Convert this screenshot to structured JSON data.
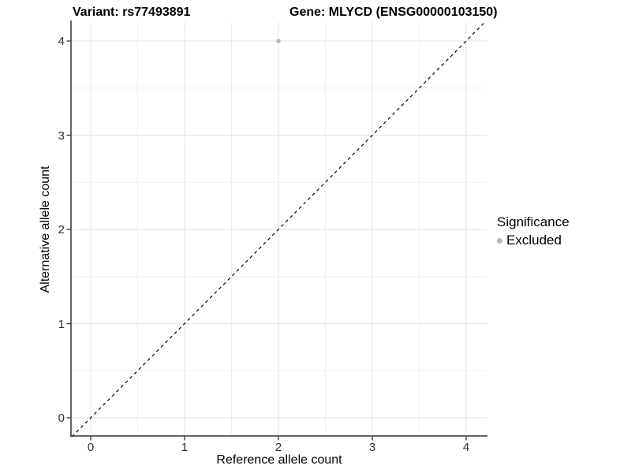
{
  "chart_data": {
    "type": "scatter",
    "title_left": "Variant: rs77493891",
    "title_right": "Gene: MLYCD (ENSG00000103150)",
    "xlabel": "Reference allele count",
    "ylabel": "Alternative allele count",
    "xlim": [
      -0.2,
      4.2
    ],
    "ylim": [
      -0.2,
      4.2
    ],
    "x_ticks": [
      0,
      1,
      2,
      3,
      4
    ],
    "y_ticks": [
      0,
      1,
      2,
      3,
      4
    ],
    "grid": "major and minor gridlines, light grey on white",
    "series": [
      {
        "name": "Excluded",
        "color": "#b5b5b5",
        "points": [
          {
            "x": 2,
            "y": 4
          }
        ]
      }
    ],
    "identity_line": {
      "style": "dashed",
      "color": "#000000",
      "from": [
        -0.2,
        -0.2
      ],
      "to": [
        4.2,
        4.2
      ]
    },
    "legend": {
      "position": "right",
      "title": "Significance",
      "items": [
        {
          "label": "Excluded",
          "color": "#b5b5b5"
        }
      ]
    }
  }
}
